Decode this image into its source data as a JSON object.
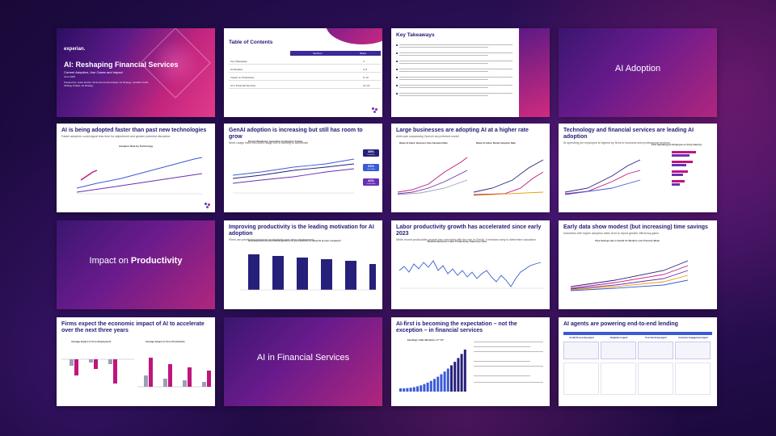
{
  "colors": {
    "navy": "#26207a",
    "magenta": "#c0157e",
    "purple": "#6a2fb5",
    "pink": "#e0459a",
    "blue": "#3b5bd6",
    "gray": "#9aa0b4"
  },
  "slides": {
    "s1": {
      "brand": "experian.",
      "title": "AI: Reshaping Financial Services",
      "subtitle": "Current Adoption, Use Cases and Impact",
      "date": "June 2025",
      "authors": "Prepared by: Jesse Fischer, Senior Economist Analyst, Ad Strategy; Jonathan Smith, Strategy Analyst, Ad Strategy"
    },
    "s2": {
      "title": "Table of Contents",
      "col_section": "Sections",
      "col_slides": "Slides",
      "rows": [
        {
          "label": "Key Takeaways",
          "slides": "3"
        },
        {
          "label": "AI Adoption",
          "slides": "4–8"
        },
        {
          "label": "Impact on Productivity",
          "slides": "9–13"
        },
        {
          "label": "AI in Financial Services",
          "slides": "14–16"
        }
      ]
    },
    "s3": {
      "title": "Key Takeaways"
    },
    "s4": {
      "title_plain": "AI Adoption"
    },
    "s5": {
      "title": "AI is being adopted faster than past new technologies",
      "subtitle": "Faster adoption could signal less time for adjustment and greater potential disruption",
      "chart_title": "Adoption Rate by Technology"
    },
    "s6": {
      "title": "GenAI adoption is increasing but still has room to grow",
      "subtitle": "Work usage trails non-work usage but is starting to accelerate",
      "chart_title": "Project Worldview: Generative AI Adoption Tracker",
      "tags": [
        {
          "value": "38%",
          "label": "Overall Use"
        },
        {
          "value": "31%",
          "label": "Use at Work"
        },
        {
          "value": "42%",
          "label": "Outside Work"
        }
      ]
    },
    "s7": {
      "title": "Large businesses are adopting AI at a higher rate",
      "subtitle": "Anthropic surpassing OpenAI as preferred model",
      "left_chart": "Ramp AI Index: Business Size Adoption Rate",
      "right_chart": "Ramp AI Index: Model Adoption Rate"
    },
    "s8": {
      "title": "Technology and financial services are leading AI adoption",
      "subtitle": "AI spending per employee is highest by firms in business and professional services",
      "right_chart": "Firm Spending per Employee on AI by Industry"
    },
    "s9": {
      "title_plain": "Impact on",
      "title_bold": "Productivity"
    },
    "s10": {
      "title": "Improving productivity is the leading motivation for AI adoption",
      "subtitle": "Firms are prioritizing improved productivity over labor replacement",
      "chart_title": "How important are the following factors in your decision to adopt AI at your company?"
    },
    "s11": {
      "title": "Labor productivity growth has accelerated since early 2023",
      "subtitle": "While recent productivity growth has coincided with the rise in GenAI, it remains early to determine causation",
      "chart_title": "Nonfarm Business Labor Productivity, Output per Hour"
    },
    "s12": {
      "title": "Early data show modest (but increasing) time savings",
      "subtitle": "Industries with higher adoption rates tend to report greater efficiency gains",
      "chart_title": "Time Savings due to GenAI for Workers over Previous Week"
    },
    "s13": {
      "title": "Firms expect the economic impact of AI to accelerate over the next three years",
      "left_chart": "Average Impact of AI on Employment",
      "right_chart": "Average Impact of AI on Productivity"
    },
    "s14": {
      "title_plain": "AI in Financial Services"
    },
    "s15": {
      "title": "AI-first is becoming the expectation – not the exception – in financial services",
      "chart_title": "Earnings Calls Mentions of \"AI\""
    },
    "s16": {
      "title": "AI agents are powering end-to-end lending",
      "columns": [
        "Credit Processing Agent",
        "Origination Agent",
        "Post-Servicing Agent",
        "Customer Engagement Agent"
      ]
    }
  }
}
